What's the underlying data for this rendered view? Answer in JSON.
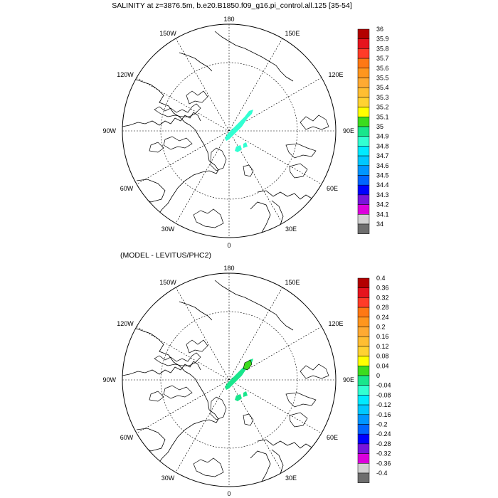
{
  "panels": [
    {
      "title": "SALINITY at z=3876.5m, b.e20.B1850.f09_g16.pi_control.all.125 [35-54]",
      "colorbar": {
        "labels": [
          "36",
          "35.9",
          "35.8",
          "35.7",
          "35.6",
          "35.5",
          "35.4",
          "35.3",
          "35.2",
          "35.1",
          "35",
          "34.9",
          "34.8",
          "34.7",
          "34.6",
          "34.5",
          "34.4",
          "34.3",
          "34.2",
          "34.1",
          "34"
        ],
        "colors": [
          "#b30000",
          "#e6141e",
          "#ff3c28",
          "#ff7814",
          "#ff961e",
          "#ffaa32",
          "#ffbe32",
          "#ffd232",
          "#ffff00",
          "#3cdc1e",
          "#19e68c",
          "#32ffd2",
          "#00eaff",
          "#00c8ff",
          "#0096ff",
          "#0064ff",
          "#0000ff",
          "#7814dc",
          "#dc00dc",
          "#d2d2d2",
          "#6e6e6e"
        ]
      },
      "feature_color": "#32ffd2"
    },
    {
      "title": "(MODEL - LEVITUS/PHC2)",
      "colorbar": {
        "labels": [
          "0.4",
          "0.36",
          "0.32",
          "0.28",
          "0.24",
          "0.2",
          "0.16",
          "0.12",
          "0.08",
          "0.04",
          "0",
          "-0.04",
          "-0.08",
          "-0.12",
          "-0.16",
          "-0.2",
          "-0.24",
          "-0.28",
          "-0.32",
          "-0.36",
          "-0.4"
        ],
        "colors": [
          "#b30000",
          "#e6141e",
          "#ff3c28",
          "#ff7814",
          "#ff961e",
          "#ffaa32",
          "#ffbe32",
          "#ffd232",
          "#ffff00",
          "#3cdc1e",
          "#19e68c",
          "#32ffd2",
          "#00eaff",
          "#00c8ff",
          "#0096ff",
          "#0064ff",
          "#0000ff",
          "#7814dc",
          "#dc00dc",
          "#d2d2d2",
          "#6e6e6e"
        ]
      },
      "feature_color": "#19e68c"
    }
  ],
  "map_labels": {
    "top": "180",
    "bottom": "0",
    "left": "90W",
    "right": "90E",
    "upper_left_1": "150W",
    "upper_right_1": "150E",
    "upper_left_2": "120W",
    "upper_right_2": "120E",
    "lower_left_1": "60W",
    "lower_right_1": "60E",
    "lower_left_2": "30W",
    "lower_right_2": "30E"
  }
}
